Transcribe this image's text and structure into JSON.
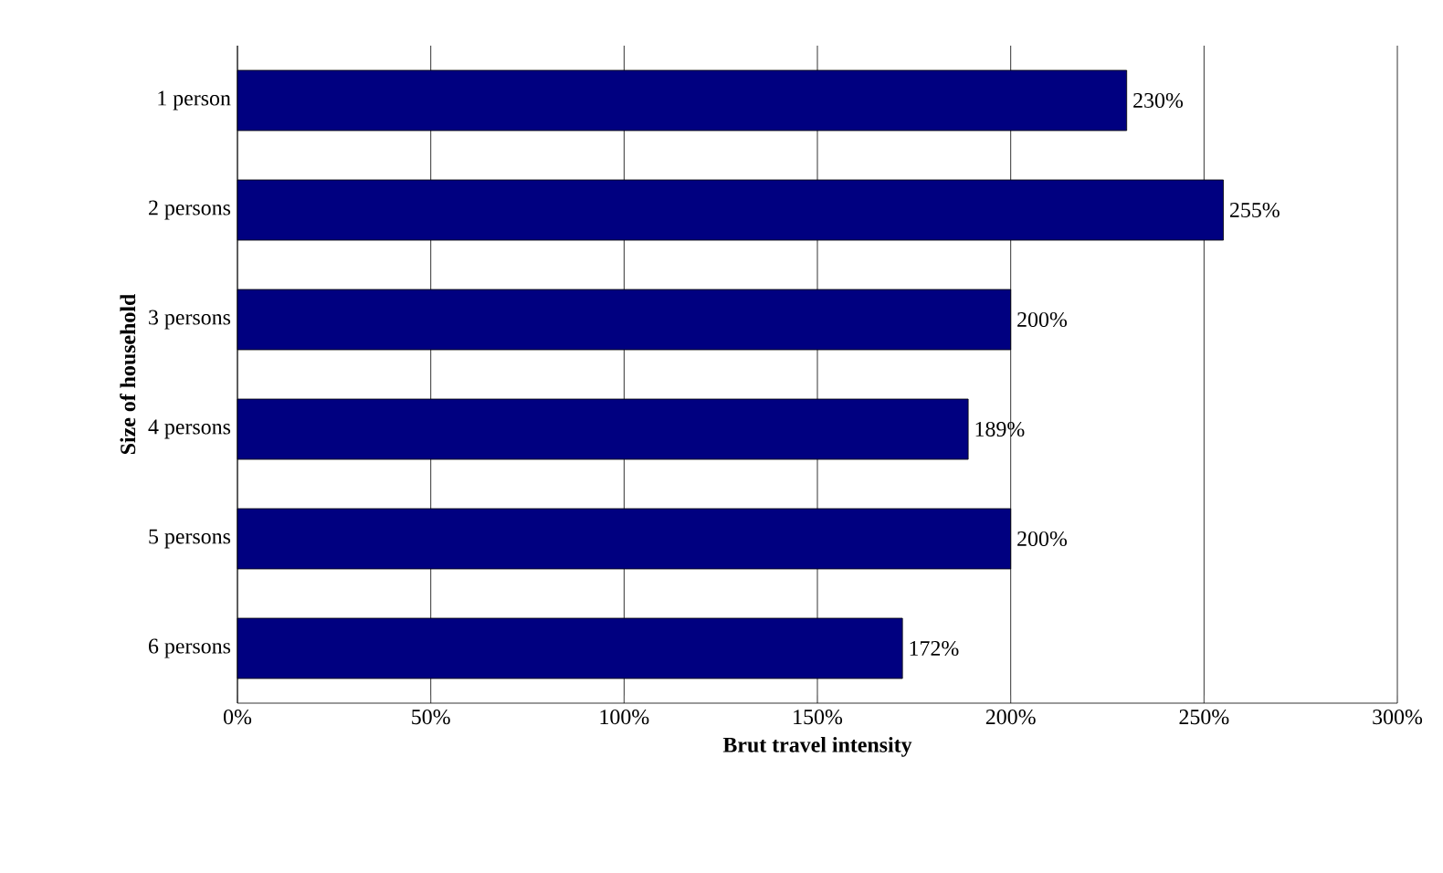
{
  "chart_data": {
    "type": "bar",
    "orientation": "horizontal",
    "xlabel": "Brut travel intensity",
    "ylabel": "Size of household",
    "categories": [
      "1 person",
      "2 persons",
      "3 persons",
      "4 persons",
      "5 persons",
      "6 persons"
    ],
    "values": [
      230,
      255,
      200,
      189,
      200,
      172
    ],
    "value_labels": [
      "230%",
      "255%",
      "200%",
      "189%",
      "200%",
      "172%"
    ],
    "color": "#000080",
    "xlim": [
      0,
      300
    ],
    "xticks": [
      {
        "value": 0,
        "label": "0%"
      },
      {
        "value": 50,
        "label": "50%"
      },
      {
        "value": 100,
        "label": "100%"
      },
      {
        "value": 150,
        "label": "150%"
      },
      {
        "value": 200,
        "label": "200%"
      },
      {
        "value": 250,
        "label": "250%"
      },
      {
        "value": 300,
        "label": "300%"
      }
    ],
    "grid": "x"
  }
}
